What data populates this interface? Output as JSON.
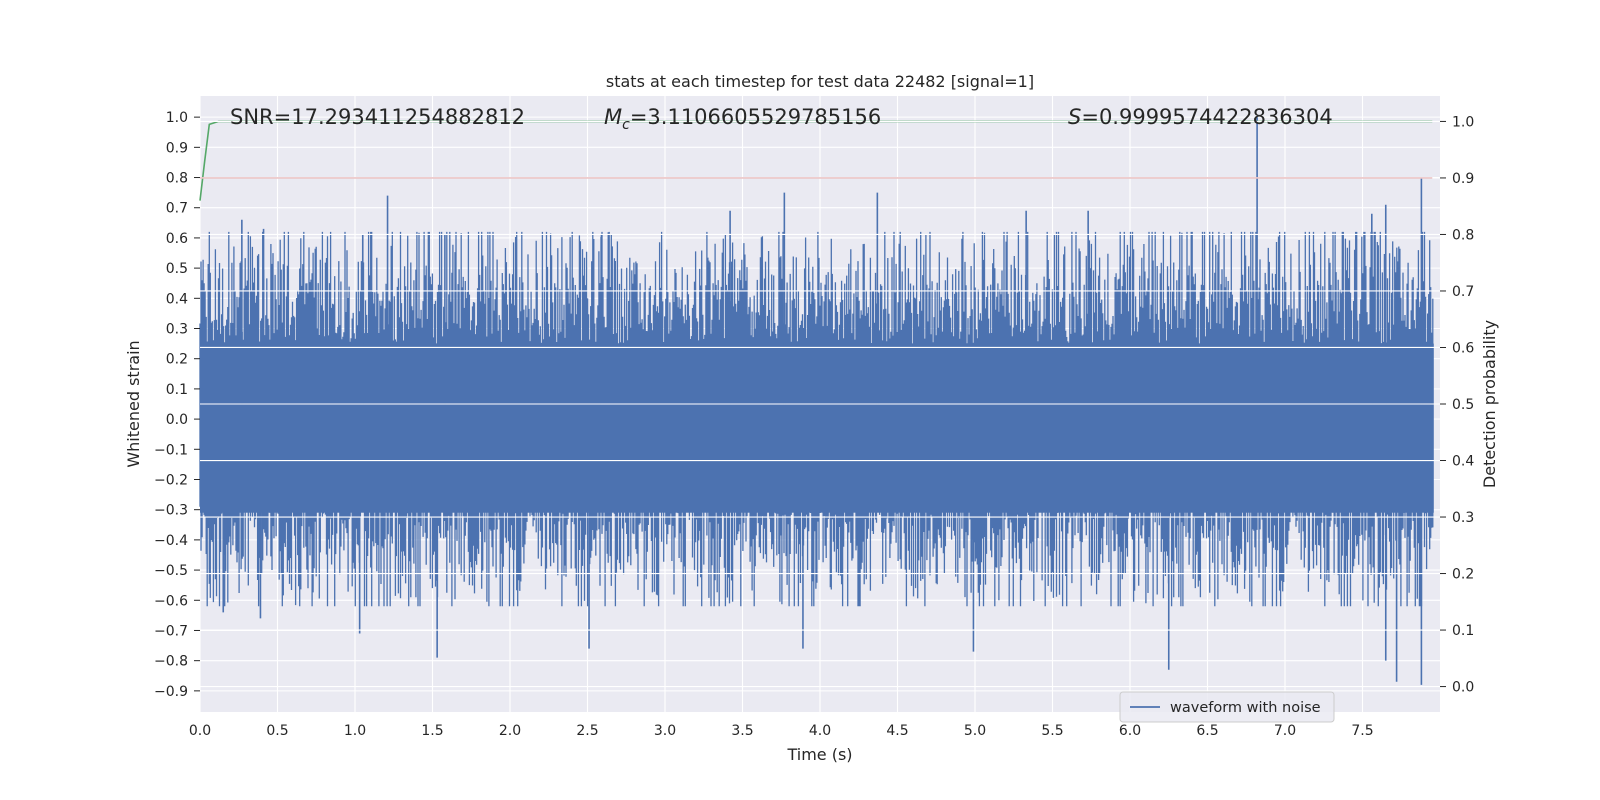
{
  "chart_data": {
    "type": "line",
    "title": "stats at each timestep for test data 22482 [signal=1]",
    "xlabel": "Time (s)",
    "ylabel": "Whitened strain",
    "y2label": "Detection probability",
    "xlim": [
      0.0,
      8.0
    ],
    "ylim": [
      -0.97,
      1.07
    ],
    "y2lim": [
      -0.045,
      1.045
    ],
    "x_ticks": [
      "0.0",
      "0.5",
      "1.0",
      "1.5",
      "2.0",
      "2.5",
      "3.0",
      "3.5",
      "4.0",
      "4.5",
      "5.0",
      "5.5",
      "6.0",
      "6.5",
      "7.0",
      "7.5"
    ],
    "y_ticks": [
      "-0.9",
      "-0.8",
      "-0.7",
      "-0.6",
      "-0.5",
      "-0.4",
      "-0.3",
      "-0.2",
      "-0.1",
      "0.0",
      "0.1",
      "0.2",
      "0.3",
      "0.4",
      "0.5",
      "0.6",
      "0.7",
      "0.8",
      "0.9",
      "1.0"
    ],
    "y2_ticks": [
      "0.0",
      "0.1",
      "0.2",
      "0.3",
      "0.4",
      "0.5",
      "0.6",
      "0.7",
      "0.8",
      "0.9",
      "1.0"
    ],
    "annotations": {
      "snr": "SNR=17.293411254882812",
      "mc_symbol": "M",
      "mc_sub": "c",
      "mc_value": "=3.1106605529785156",
      "s_symbol": "S",
      "s_value": "=0.9999574422836304"
    },
    "grid": true,
    "legend_position": "lower-right",
    "series": [
      {
        "name": "waveform with noise",
        "axis": "left",
        "color": "#4c72b0",
        "description": "dense noisy whitened strain, mostly within ±0.4, peaks near 1.0 at t≈6.82 s",
        "peaks_positive": [
          {
            "x": 0.27,
            "y": 0.66
          },
          {
            "x": 0.41,
            "y": 0.63
          },
          {
            "x": 1.05,
            "y": 0.61
          },
          {
            "x": 1.21,
            "y": 0.74
          },
          {
            "x": 1.58,
            "y": 0.61
          },
          {
            "x": 2.59,
            "y": 0.61
          },
          {
            "x": 3.42,
            "y": 0.69
          },
          {
            "x": 3.77,
            "y": 0.75
          },
          {
            "x": 4.37,
            "y": 0.75
          },
          {
            "x": 5.33,
            "y": 0.69
          },
          {
            "x": 5.73,
            "y": 0.69
          },
          {
            "x": 6.82,
            "y": 1.0
          },
          {
            "x": 7.56,
            "y": 0.68
          },
          {
            "x": 7.65,
            "y": 0.71
          },
          {
            "x": 7.88,
            "y": 0.8
          }
        ],
        "peaks_negative": [
          {
            "x": 0.15,
            "y": -0.64
          },
          {
            "x": 0.39,
            "y": -0.66
          },
          {
            "x": 1.03,
            "y": -0.71
          },
          {
            "x": 1.53,
            "y": -0.79
          },
          {
            "x": 2.51,
            "y": -0.76
          },
          {
            "x": 3.89,
            "y": -0.76
          },
          {
            "x": 4.99,
            "y": -0.77
          },
          {
            "x": 6.25,
            "y": -0.83
          },
          {
            "x": 7.65,
            "y": -0.8
          },
          {
            "x": 7.72,
            "y": -0.87
          },
          {
            "x": 7.88,
            "y": -0.88
          }
        ]
      },
      {
        "name": "",
        "axis": "right",
        "color": "#55a868",
        "points": [
          [
            0.0,
            0.86
          ],
          [
            0.03,
            0.93
          ],
          [
            0.06,
            0.995
          ],
          [
            0.12,
            1.0
          ],
          [
            7.95,
            1.0
          ]
        ]
      },
      {
        "name": "",
        "axis": "right",
        "color": "#c44e52",
        "points": [
          [
            0.0,
            0.9
          ],
          [
            7.95,
            0.9
          ]
        ]
      }
    ]
  }
}
